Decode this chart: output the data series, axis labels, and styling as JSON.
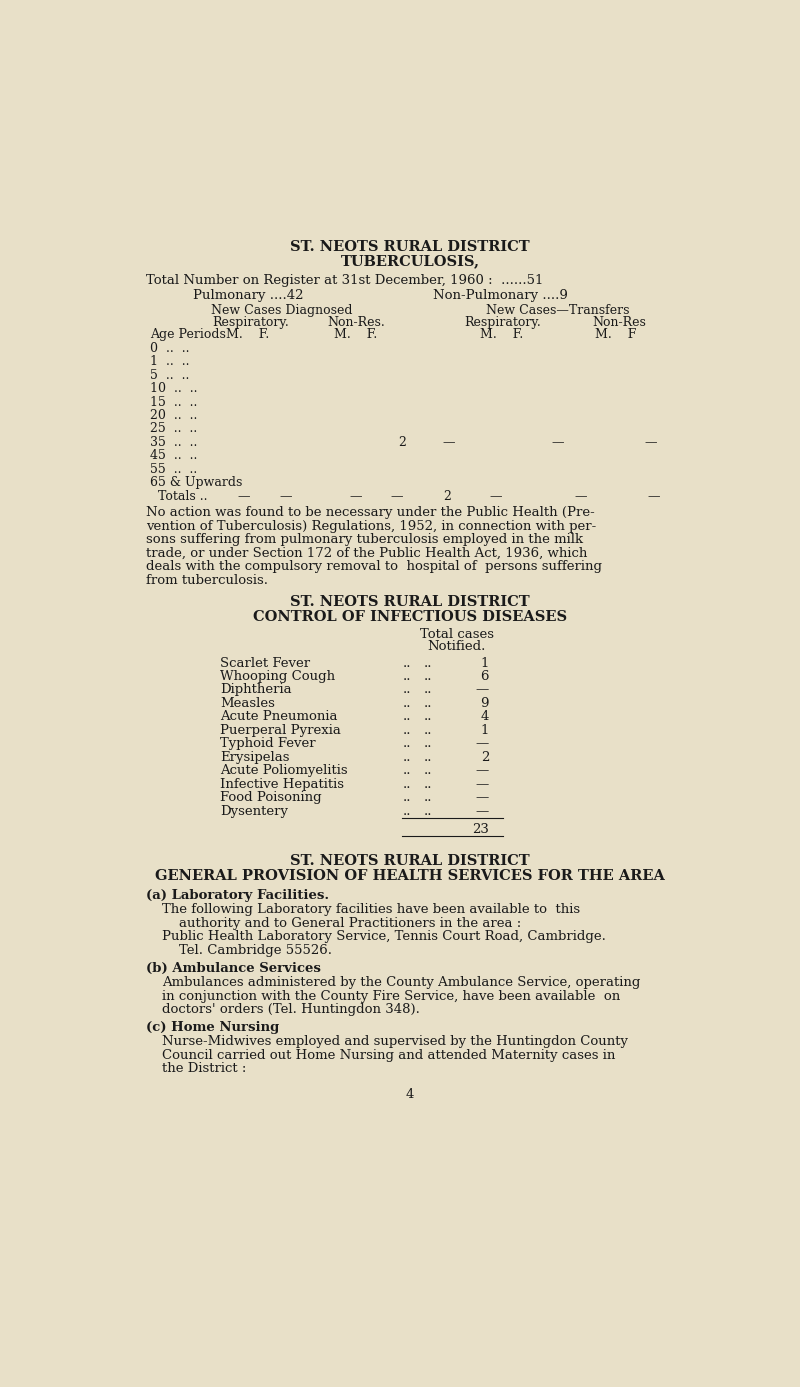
{
  "bg_color": "#e8e0c8",
  "text_color": "#1a1a1a",
  "page_number": "4",
  "section1": {
    "title1": "ST. NEOTS RURAL DISTRICT",
    "title2": "TUBERCULOSIS,",
    "register_line": "Total Number on Register at 31st December, 1960 :  ......51",
    "pulmonary": "Pulmonary ....42",
    "non_pulmonary": "Non-Pulmonary ....9",
    "col_header1": "New Cases Diagnosed",
    "col_header2": "New Cases—Transfers",
    "sub_header1": "Respiratory.",
    "sub_header2": "Non-Res.",
    "sub_header3": "Respiratory.",
    "sub_header4": "Non-Res",
    "age_label": "Age Periods",
    "age_periods": [
      "0  ..  ..",
      "1  ..  ..",
      "5  ..  ..",
      "10  ..  ..",
      "15  ..  ..",
      "20  ..  ..",
      "25  ..  ..",
      "35  ..  ..",
      "45  ..  ..",
      "55  ..  ..",
      "65 & Upwards"
    ],
    "totals_label": "Totals ..",
    "paragraph_lines": [
      "No action was found to be necessary under the Public Health (Pre-",
      "vention of Tuberculosis) Regulations, 1952, in connection with per-",
      "sons suffering from pulmonary tuberculosis employed in the milk",
      "trade, or under Section 172 of the Public Health Act, 1936, which",
      "deals with the compulsory removal to  hospital of  persons suffering",
      "from tuberculosis."
    ]
  },
  "section2": {
    "title1": "ST. NEOTS RURAL DISTRICT",
    "title2": "CONTROL OF INFECTIOUS DISEASES",
    "col_header": "Total cases",
    "col_subheader": "Notified.",
    "diseases": [
      [
        "Scarlet Fever",
        "1"
      ],
      [
        "Whooping Cough",
        "6"
      ],
      [
        "Diphtheria",
        "—"
      ],
      [
        "Measles",
        "9"
      ],
      [
        "Acute Pneumonia",
        "4"
      ],
      [
        "Puerperal Pyrexia",
        "1"
      ],
      [
        "Typhoid Fever",
        "—"
      ],
      [
        "Erysipelas",
        "2"
      ],
      [
        "Acute Poliomyelitis",
        "—"
      ],
      [
        "Infective Hepatitis",
        "—"
      ],
      [
        "Food Poisoning",
        "—"
      ],
      [
        "Dysentery",
        "—"
      ]
    ],
    "total": "23"
  },
  "section3": {
    "title1": "ST. NEOTS RURAL DISTRICT",
    "title2": "GENERAL PROVISION OF HEALTH SERVICES FOR THE AREA",
    "subsections": [
      {
        "label": "(a) Laboratory Facilities.",
        "body_lines": [
          "The following Laboratory facilities have been available to  this",
          "    authority and to General Practitioners in the area :",
          "Public Health Laboratory Service, Tennis Court Road, Cambridge.",
          "    Tel. Cambridge 55526."
        ]
      },
      {
        "label": "(b) Ambulance Services",
        "body_lines": [
          "Ambulances administered by the County Ambulance Service, operating",
          "in conjunction with the County Fire Service, have been available  on",
          "doctors' orders (Tel. Huntingdon 348)."
        ]
      },
      {
        "label": "(c) Home Nursing",
        "body_lines": [
          "Nurse-Midwives employed and supervised by the Huntingdon County",
          "Council carried out Home Nursing and attended Maternity cases in",
          "the District :"
        ]
      }
    ]
  }
}
